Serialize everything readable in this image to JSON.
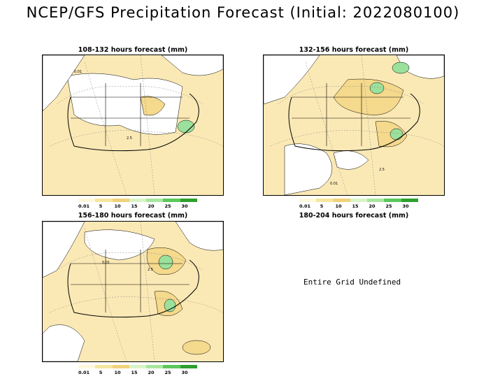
{
  "title": "NCEP/GFS Precipitation Forecast (Initial: 2022080100)",
  "panels": [
    {
      "label": "108-132 hours forecast (mm)"
    },
    {
      "label": "132-156 hours forecast (mm)"
    },
    {
      "label": "156-180 hours forecast (mm)"
    },
    {
      "label": "180-204 hours forecast (mm)",
      "message": "Entire Grid Undefined"
    }
  ],
  "legend": {
    "levels": [
      "0.01",
      "5",
      "10",
      "15",
      "20",
      "25",
      "30"
    ],
    "colors": [
      "#fff8dc",
      "#f5e6a0",
      "#f2d27a",
      "#d8f5c8",
      "#a8e6a0",
      "#5cc85c",
      "#2ea02e"
    ]
  },
  "contour_labels": [
    "0.01",
    "2.5"
  ],
  "colors": {
    "light_precip": "#fbe9b5",
    "moderate_precip": "#f5d98c",
    "heavy_precip": "#9be09b",
    "no_precip": "#ffffff"
  }
}
